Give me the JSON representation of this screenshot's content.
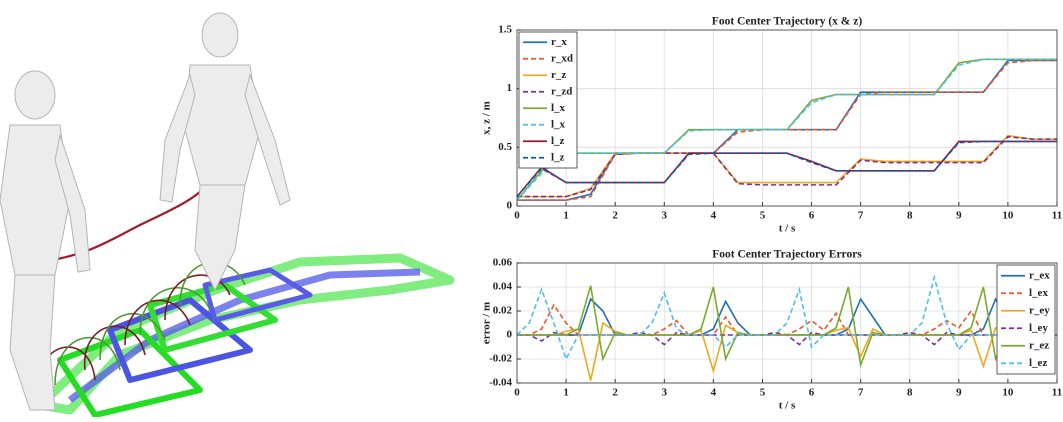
{
  "chart_data": [
    {
      "type": "line",
      "title": "Foot Center Trajectory (x & z)",
      "xlabel": "t / s",
      "ylabel": "x, z / m",
      "xlim": [
        0,
        11
      ],
      "ylim": [
        0,
        1.5
      ],
      "xticks": [
        0,
        1,
        2,
        3,
        4,
        5,
        6,
        7,
        8,
        9,
        10,
        11
      ],
      "yticks": [
        0,
        0.5,
        1,
        1.5
      ],
      "grid": true,
      "legend": "upper left",
      "x": [
        0,
        0.5,
        1,
        1.5,
        2,
        2.5,
        3,
        3.5,
        4,
        4.5,
        5,
        5.5,
        6,
        6.5,
        7,
        7.5,
        8,
        8.5,
        9,
        9.5,
        10,
        10.5,
        11
      ],
      "series": [
        {
          "name": "r_x",
          "color": "#1f6fb5",
          "style": "solid",
          "values": [
            0.05,
            0.05,
            0.05,
            0.1,
            0.45,
            0.45,
            0.45,
            0.45,
            0.45,
            0.65,
            0.65,
            0.65,
            0.65,
            0.65,
            0.97,
            0.97,
            0.97,
            0.97,
            0.97,
            0.97,
            1.24,
            1.24,
            1.24
          ]
        },
        {
          "name": "r_xd",
          "color": "#e8582a",
          "style": "dashed",
          "values": [
            0.05,
            0.05,
            0.05,
            0.08,
            0.44,
            0.45,
            0.45,
            0.45,
            0.45,
            0.63,
            0.65,
            0.65,
            0.65,
            0.65,
            0.95,
            0.97,
            0.97,
            0.97,
            0.97,
            0.97,
            1.22,
            1.24,
            1.24
          ]
        },
        {
          "name": "r_z",
          "color": "#f0a81c",
          "style": "solid",
          "values": [
            0.08,
            0.08,
            0.08,
            0.15,
            0.45,
            0.45,
            0.45,
            0.45,
            0.45,
            0.2,
            0.2,
            0.2,
            0.2,
            0.2,
            0.4,
            0.38,
            0.38,
            0.38,
            0.38,
            0.38,
            0.6,
            0.57,
            0.57
          ]
        },
        {
          "name": "r_zd",
          "color": "#7e2f8e",
          "style": "dashed",
          "values": [
            0.08,
            0.08,
            0.08,
            0.14,
            0.44,
            0.45,
            0.45,
            0.45,
            0.45,
            0.19,
            0.18,
            0.18,
            0.18,
            0.18,
            0.39,
            0.37,
            0.37,
            0.37,
            0.37,
            0.37,
            0.59,
            0.57,
            0.57
          ]
        },
        {
          "name": "l_x",
          "color": "#77ac30",
          "style": "solid",
          "values": [
            0.05,
            0.3,
            0.45,
            0.45,
            0.45,
            0.45,
            0.45,
            0.65,
            0.65,
            0.65,
            0.65,
            0.65,
            0.9,
            0.95,
            0.95,
            0.95,
            0.95,
            0.95,
            1.22,
            1.25,
            1.25,
            1.25,
            1.25
          ]
        },
        {
          "name": "l_x",
          "color": "#4dbeee",
          "style": "dashed",
          "values": [
            0.05,
            0.28,
            0.45,
            0.45,
            0.45,
            0.45,
            0.45,
            0.64,
            0.65,
            0.65,
            0.65,
            0.65,
            0.88,
            0.95,
            0.95,
            0.95,
            0.95,
            0.95,
            1.2,
            1.25,
            1.25,
            1.25,
            1.25
          ]
        },
        {
          "name": "l_z",
          "color": "#a2142f",
          "style": "solid",
          "values": [
            0.08,
            0.33,
            0.2,
            0.2,
            0.2,
            0.2,
            0.2,
            0.45,
            0.45,
            0.45,
            0.45,
            0.45,
            0.38,
            0.3,
            0.3,
            0.3,
            0.3,
            0.3,
            0.55,
            0.55,
            0.55,
            0.55,
            0.55
          ]
        },
        {
          "name": "l_z",
          "color": "#0b5ea8",
          "style": "dashed",
          "values": [
            0.08,
            0.32,
            0.2,
            0.2,
            0.2,
            0.2,
            0.2,
            0.44,
            0.45,
            0.45,
            0.45,
            0.45,
            0.37,
            0.3,
            0.3,
            0.3,
            0.3,
            0.3,
            0.54,
            0.55,
            0.55,
            0.55,
            0.55
          ]
        }
      ]
    },
    {
      "type": "line",
      "title": "Foot Center Trajectory Errors",
      "xlabel": "t / s",
      "ylabel": "error / m",
      "xlim": [
        0,
        11
      ],
      "ylim": [
        -0.04,
        0.06
      ],
      "xticks": [
        0,
        1,
        2,
        3,
        4,
        5,
        6,
        7,
        8,
        9,
        10,
        11
      ],
      "yticks": [
        -0.04,
        -0.02,
        0,
        0.02,
        0.04,
        0.06
      ],
      "grid": true,
      "legend": "upper right",
      "x": [
        0,
        0.25,
        0.5,
        0.75,
        1,
        1.25,
        1.5,
        1.75,
        2,
        2.25,
        2.5,
        2.75,
        3,
        3.25,
        3.5,
        3.75,
        4,
        4.25,
        4.5,
        4.75,
        5,
        5.25,
        5.5,
        5.75,
        6,
        6.25,
        6.5,
        6.75,
        7,
        7.25,
        7.5,
        7.75,
        8,
        8.25,
        8.5,
        8.75,
        9,
        9.25,
        9.5,
        9.75,
        10,
        10.25,
        10.5,
        10.75,
        11
      ],
      "series": [
        {
          "name": "r_ex",
          "color": "#1f6fb5",
          "style": "solid",
          "values": [
            0,
            0,
            0,
            0,
            0,
            0,
            0.03,
            0.02,
            0,
            0,
            0,
            0,
            0,
            0,
            0,
            0,
            0.005,
            0.028,
            0.01,
            0,
            0,
            0,
            0,
            0,
            0,
            0,
            0,
            0.005,
            0.03,
            0.015,
            0,
            0,
            0,
            0,
            0,
            0,
            0,
            0,
            0.005,
            0.03,
            0.01,
            0,
            0,
            0,
            0
          ]
        },
        {
          "name": "l_ex",
          "color": "#e8582a",
          "style": "dashed",
          "values": [
            0,
            0,
            0.005,
            0.025,
            0.01,
            0,
            0,
            0,
            0,
            0,
            0,
            0,
            0.005,
            0.012,
            0,
            0,
            0,
            0.015,
            0,
            0,
            0,
            0,
            0,
            0.005,
            0.012,
            0.004,
            0.018,
            0,
            0,
            0,
            0,
            0,
            0,
            0,
            0.005,
            0.012,
            0.006,
            0.02,
            0,
            0,
            0,
            0,
            0,
            0,
            0
          ]
        },
        {
          "name": "r_ey",
          "color": "#f0a81c",
          "style": "solid",
          "values": [
            0,
            0,
            0,
            0,
            0.003,
            0.005,
            -0.038,
            0.01,
            0.003,
            0,
            0,
            0,
            0,
            0,
            0,
            0.004,
            -0.03,
            0.008,
            0.002,
            0,
            0,
            0,
            0,
            0,
            0,
            0,
            0.004,
            0.006,
            -0.018,
            0.005,
            0,
            0,
            0,
            0,
            0,
            0,
            0,
            0.004,
            -0.026,
            0.006,
            0.002,
            0,
            0,
            0,
            0
          ]
        },
        {
          "name": "l_ey",
          "color": "#7e2f8e",
          "style": "dashed",
          "values": [
            0,
            0,
            -0.005,
            0.002,
            0,
            0,
            0,
            0,
            0,
            0,
            0.002,
            0,
            -0.008,
            0.002,
            0,
            0,
            0,
            0,
            0,
            0,
            0,
            0.002,
            0,
            -0.008,
            0.002,
            0,
            0,
            0,
            0,
            0,
            0,
            0,
            0.002,
            0,
            -0.008,
            0.002,
            0,
            0,
            0,
            0,
            0,
            0,
            0,
            0,
            0
          ]
        },
        {
          "name": "r_ez",
          "color": "#77ac30",
          "style": "solid",
          "values": [
            0,
            0,
            0,
            0,
            0,
            0.005,
            0.041,
            -0.02,
            0.002,
            0,
            0,
            0,
            0,
            0,
            0,
            0.005,
            0.04,
            -0.02,
            0.002,
            0,
            0,
            0,
            0,
            0,
            0,
            0,
            0.006,
            0.04,
            -0.025,
            0.002,
            0,
            0,
            0,
            0,
            0,
            0,
            0,
            0.006,
            0.04,
            -0.02,
            0.002,
            0,
            0,
            0,
            0
          ]
        },
        {
          "name": "l_ez",
          "color": "#4dbeee",
          "style": "dashed",
          "values": [
            0,
            0.01,
            0.038,
            0.01,
            -0.02,
            0,
            0,
            0,
            0,
            0,
            0,
            0.01,
            0.035,
            0.005,
            0,
            0,
            0,
            -0.01,
            0,
            0,
            0,
            0,
            0.01,
            0.038,
            -0.01,
            0,
            0,
            0,
            0,
            0,
            0,
            0,
            0,
            0.01,
            0.048,
            0.01,
            -0.012,
            0,
            0,
            0,
            0,
            0,
            0,
            0,
            0
          ]
        }
      ]
    }
  ]
}
